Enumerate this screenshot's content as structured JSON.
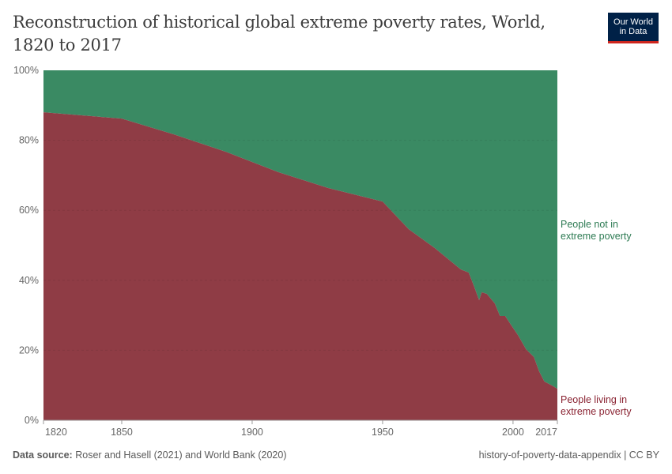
{
  "title": "Reconstruction of historical global extreme poverty rates, World, 1820 to 2017",
  "logo": {
    "line1": "Our World",
    "line2": "in Data"
  },
  "footer": {
    "source_label": "Data source:",
    "source_text": "Roser and Hasell (2021) and World Bank (2020)",
    "right": "history-of-poverty-data-appendix | CC BY"
  },
  "colors": {
    "poverty": "#8f3c45",
    "not_poverty": "#3a8a63",
    "logo_bg": "#002147",
    "logo_accent": "#ce261e"
  },
  "chart_data": {
    "type": "area",
    "stacked": true,
    "relative": true,
    "xlim": [
      1820,
      2017
    ],
    "ylim": [
      0,
      100
    ],
    "x_ticks": [
      "1820",
      "1850",
      "1900",
      "1950",
      "2000",
      "2017"
    ],
    "y_ticks": [
      "0%",
      "20%",
      "40%",
      "60%",
      "80%",
      "100%"
    ],
    "grid": "horizontal dashed",
    "legend": "right, inline labels",
    "x": [
      1820,
      1850,
      1870,
      1890,
      1910,
      1929,
      1950,
      1960,
      1970,
      1980,
      1983,
      1985,
      1987,
      1988,
      1990,
      1993,
      1995,
      1997,
      1999,
      2002,
      2005,
      2008,
      2010,
      2012,
      2015,
      2017
    ],
    "series": [
      {
        "name": "People living in extreme poverty",
        "color": "#8f3c45",
        "values": [
          88.0,
          86.2,
          81.7,
          76.7,
          70.9,
          66.4,
          62.5,
          54.6,
          49.2,
          43.1,
          42.2,
          38.4,
          34.3,
          36.6,
          36.1,
          33.4,
          29.8,
          29.8,
          27.5,
          24.2,
          20.3,
          18.1,
          14.0,
          11.1,
          9.9,
          9.0
        ]
      },
      {
        "name": "People not in extreme poverty",
        "color": "#3a8a63",
        "values": [
          12.0,
          13.8,
          18.3,
          23.3,
          29.1,
          33.6,
          37.5,
          45.4,
          50.8,
          56.9,
          57.8,
          61.6,
          65.7,
          63.4,
          63.9,
          66.6,
          70.2,
          70.2,
          72.5,
          75.8,
          79.7,
          81.9,
          86.0,
          88.9,
          90.1,
          91.0
        ]
      }
    ],
    "labels": {
      "not_poverty": [
        "People not in",
        "extreme poverty"
      ],
      "poverty": [
        "People living in",
        "extreme poverty"
      ]
    }
  }
}
